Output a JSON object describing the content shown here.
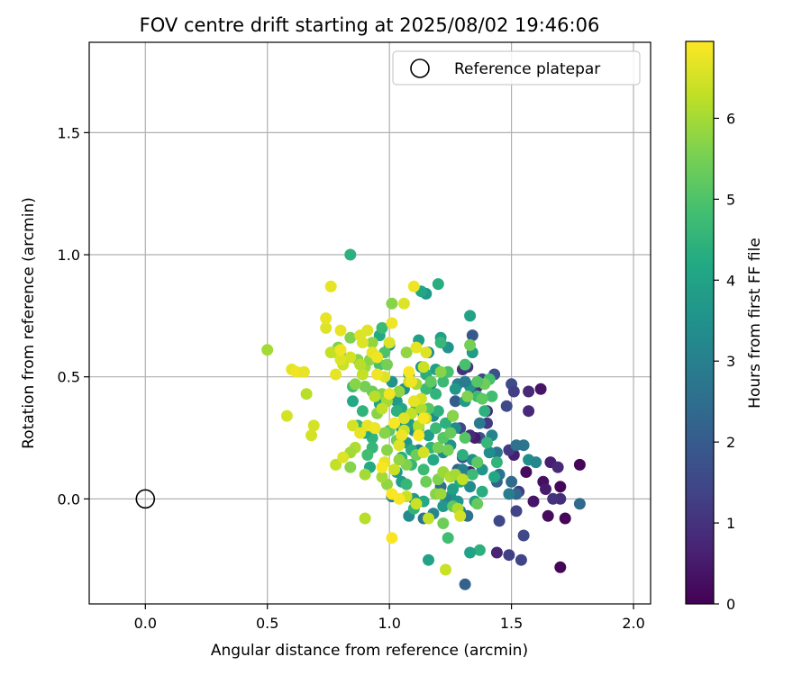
{
  "chart_data": {
    "type": "scatter",
    "title": "FOV centre drift starting at 2025/08/02 19:46:06",
    "xlabel": "Angular distance from reference (arcmin)",
    "ylabel": "Rotation from reference (arcmin)",
    "xlim": [
      -0.23,
      2.07
    ],
    "ylim": [
      -0.43,
      1.87
    ],
    "xticks": [
      0.0,
      0.5,
      1.0,
      1.5,
      2.0
    ],
    "xtick_labels": [
      "0.0",
      "0.5",
      "1.0",
      "1.5",
      "2.0"
    ],
    "yticks": [
      0.0,
      0.5,
      1.0,
      1.5
    ],
    "ytick_labels": [
      "0.0",
      "0.5",
      "1.0",
      "1.5"
    ],
    "grid": true,
    "legend": {
      "placement": "top-right",
      "entries": [
        "Reference platepar"
      ]
    },
    "reference_point": {
      "x": 0.0,
      "y": 0.0
    },
    "colorbar": {
      "label": "Hours from first FF file",
      "colormap": "viridis",
      "range": [
        0,
        6.95
      ],
      "ticks": [
        0,
        1,
        2,
        3,
        4,
        5,
        6
      ],
      "tick_labels": [
        "0",
        "1",
        "2",
        "3",
        "4",
        "5",
        "6"
      ]
    },
    "points": [
      [
        1.7,
        0.05,
        0.1
      ],
      [
        1.78,
        0.14,
        0.1
      ],
      [
        1.72,
        -0.08,
        0.1
      ],
      [
        1.7,
        -0.28,
        0.1
      ],
      [
        1.65,
        -0.07,
        0.2
      ],
      [
        1.62,
        0.45,
        0.4
      ],
      [
        1.56,
        0.11,
        0.2
      ],
      [
        1.59,
        -0.01,
        0.4
      ],
      [
        1.63,
        0.07,
        0.3
      ],
      [
        1.66,
        0.15,
        0.6
      ],
      [
        1.69,
        0.13,
        0.8
      ],
      [
        1.7,
        0.0,
        0.9
      ],
      [
        1.67,
        0.0,
        1.0
      ],
      [
        1.64,
        0.04,
        0.5
      ],
      [
        1.57,
        0.44,
        0.8
      ],
      [
        1.57,
        0.36,
        0.8
      ],
      [
        1.53,
        0.03,
        1.2
      ],
      [
        1.52,
        -0.05,
        1.4
      ],
      [
        1.55,
        -0.15,
        1.5
      ],
      [
        1.54,
        -0.25,
        1.4
      ],
      [
        1.49,
        -0.23,
        1.3
      ],
      [
        1.44,
        -0.22,
        0.7
      ],
      [
        1.45,
        -0.09,
        1.5
      ],
      [
        1.51,
        0.18,
        0.6
      ],
      [
        1.49,
        0.2,
        1.2
      ],
      [
        1.5,
        0.47,
        1.6
      ],
      [
        1.51,
        0.44,
        1.3
      ],
      [
        1.48,
        0.38,
        1.5
      ],
      [
        1.43,
        0.51,
        1.7
      ],
      [
        1.4,
        0.36,
        0.9
      ],
      [
        1.4,
        0.31,
        1.2
      ],
      [
        1.37,
        0.25,
        1.7
      ],
      [
        1.35,
        0.25,
        0.5
      ],
      [
        1.33,
        0.26,
        0.8
      ],
      [
        1.36,
        0.46,
        0.9
      ],
      [
        1.38,
        0.49,
        1.5
      ],
      [
        1.34,
        0.45,
        1.3
      ],
      [
        1.32,
        0.54,
        1.1
      ],
      [
        1.34,
        0.67,
        1.9
      ],
      [
        1.3,
        0.53,
        1.0
      ],
      [
        1.27,
        0.4,
        2.0
      ],
      [
        1.26,
        0.34,
        0.9
      ],
      [
        1.29,
        0.29,
        1.5
      ],
      [
        1.33,
        0.11,
        0.6
      ],
      [
        1.3,
        0.17,
        1.7
      ],
      [
        1.28,
        0.12,
        2.2
      ],
      [
        1.44,
        0.07,
        2.2
      ],
      [
        1.5,
        0.07,
        2.4
      ],
      [
        1.52,
        0.02,
        2.3
      ],
      [
        1.49,
        0.02,
        2.9
      ],
      [
        1.45,
        0.1,
        2.6
      ],
      [
        1.55,
        0.22,
        2.7
      ],
      [
        1.57,
        0.16,
        3.4
      ],
      [
        1.52,
        0.22,
        2.6
      ],
      [
        1.78,
        -0.02,
        2.4
      ],
      [
        1.6,
        0.15,
        3.2
      ],
      [
        1.44,
        0.19,
        2.7
      ],
      [
        1.42,
        0.26,
        3.1
      ],
      [
        1.37,
        0.31,
        2.8
      ],
      [
        1.41,
        0.19,
        3.4
      ],
      [
        1.38,
        0.12,
        3.6
      ],
      [
        1.34,
        0.16,
        3.4
      ],
      [
        1.3,
        0.12,
        3.0
      ],
      [
        1.33,
        0.05,
        3.3
      ],
      [
        1.32,
        -0.07,
        2.6
      ],
      [
        1.31,
        -0.35,
        2.2
      ],
      [
        1.29,
        -0.05,
        3.0
      ],
      [
        1.28,
        -0.01,
        3.6
      ],
      [
        1.25,
        0.01,
        3.5
      ],
      [
        1.23,
        0.0,
        3.1
      ],
      [
        1.21,
        0.05,
        2.5
      ],
      [
        1.26,
        0.04,
        3.9
      ],
      [
        1.22,
        0.19,
        3.3
      ],
      [
        1.25,
        0.22,
        3.5
      ],
      [
        1.27,
        0.29,
        3.3
      ],
      [
        1.28,
        0.47,
        3.0
      ],
      [
        1.27,
        0.45,
        3.7
      ],
      [
        1.31,
        0.4,
        3.8
      ],
      [
        1.33,
        0.46,
        3.6
      ],
      [
        1.31,
        0.48,
        2.9
      ],
      [
        1.34,
        0.6,
        3.8
      ],
      [
        1.33,
        0.75,
        4.0
      ],
      [
        1.24,
        0.62,
        3.6
      ],
      [
        1.21,
        0.66,
        3.9
      ],
      [
        1.19,
        0.53,
        3.9
      ],
      [
        1.16,
        0.6,
        3.3
      ],
      [
        1.13,
        0.54,
        3.6
      ],
      [
        1.12,
        0.65,
        3.9
      ],
      [
        1.15,
        0.84,
        3.7
      ],
      [
        1.17,
        0.47,
        3.2
      ],
      [
        1.14,
        0.34,
        3.7
      ],
      [
        1.18,
        0.34,
        3.3
      ],
      [
        1.16,
        0.26,
        3.8
      ],
      [
        1.12,
        0.2,
        3.0
      ],
      [
        1.1,
        0.28,
        3.3
      ],
      [
        1.07,
        0.23,
        3.6
      ],
      [
        1.08,
        0.31,
        3.8
      ],
      [
        1.05,
        0.29,
        3.6
      ],
      [
        1.03,
        0.4,
        3.7
      ],
      [
        1.06,
        0.45,
        3.4
      ],
      [
        1.01,
        0.48,
        3.6
      ],
      [
        1.0,
        0.63,
        3.7
      ],
      [
        0.96,
        0.67,
        4.2
      ],
      [
        1.03,
        0.11,
        3.7
      ],
      [
        1.08,
        -0.07,
        3.3
      ],
      [
        1.14,
        -0.08,
        2.6
      ],
      [
        1.18,
        -0.06,
        3.2
      ],
      [
        1.05,
        0.07,
        3.9
      ],
      [
        1.01,
        0.01,
        3.1
      ],
      [
        1.1,
        0.0,
        3.7
      ],
      [
        1.22,
        -0.03,
        3.7
      ],
      [
        1.35,
        -0.01,
        3.9
      ],
      [
        1.38,
        0.03,
        4.3
      ],
      [
        1.43,
        0.09,
        4.1
      ],
      [
        1.44,
        0.15,
        4.5
      ],
      [
        1.4,
        0.23,
        4.6
      ],
      [
        1.39,
        0.36,
        4.4
      ],
      [
        1.42,
        0.42,
        4.8
      ],
      [
        1.41,
        0.49,
        4.9
      ],
      [
        1.36,
        0.42,
        4.7
      ],
      [
        1.31,
        0.55,
        4.9
      ],
      [
        1.24,
        0.52,
        4.9
      ],
      [
        1.21,
        0.64,
        4.6
      ],
      [
        1.19,
        0.43,
        4.5
      ],
      [
        1.22,
        0.48,
        4.7
      ],
      [
        1.15,
        0.51,
        4.3
      ],
      [
        1.2,
        0.36,
        4.4
      ],
      [
        1.19,
        0.29,
        4.7
      ],
      [
        1.23,
        0.31,
        4.4
      ],
      [
        1.17,
        0.21,
        4.5
      ],
      [
        1.18,
        0.16,
        4.2
      ],
      [
        1.09,
        0.2,
        4.3
      ],
      [
        1.05,
        0.17,
        4.4
      ],
      [
        1.07,
        0.06,
        4.6
      ],
      [
        1.09,
        0.14,
        4.6
      ],
      [
        1.11,
        0.37,
        4.4
      ],
      [
        1.05,
        0.37,
        4.1
      ],
      [
        1.08,
        0.51,
        4.2
      ],
      [
        1.03,
        0.36,
        4.4
      ],
      [
        0.96,
        0.39,
        4.0
      ],
      [
        0.93,
        0.25,
        4.5
      ],
      [
        0.92,
        0.13,
        4.2
      ],
      [
        0.93,
        0.21,
        4.6
      ],
      [
        0.9,
        0.27,
        4.2
      ],
      [
        0.89,
        0.36,
        4.5
      ],
      [
        0.85,
        0.4,
        4.2
      ],
      [
        0.85,
        0.46,
        4.8
      ],
      [
        0.84,
        1.0,
        4.4
      ],
      [
        0.87,
        0.3,
        4.6
      ],
      [
        0.91,
        0.18,
        4.8
      ],
      [
        0.94,
        0.29,
        4.9
      ],
      [
        0.96,
        0.55,
        4.9
      ],
      [
        0.98,
        0.6,
        5.0
      ],
      [
        0.97,
        0.7,
        4.7
      ],
      [
        1.2,
        0.88,
        4.3
      ],
      [
        1.13,
        0.85,
        4.1
      ],
      [
        1.15,
        0.45,
        4.7
      ],
      [
        1.3,
        0.18,
        4.4
      ],
      [
        1.34,
        0.1,
        4.7
      ],
      [
        1.29,
        0.07,
        4.2
      ],
      [
        1.37,
        -0.21,
        4.4
      ],
      [
        1.33,
        -0.22,
        4.0
      ],
      [
        1.16,
        -0.25,
        4.0
      ],
      [
        1.14,
        -0.01,
        4.2
      ],
      [
        1.1,
        -0.04,
        4.5
      ],
      [
        1.14,
        0.12,
        4.7
      ],
      [
        1.38,
        0.41,
        5.2
      ],
      [
        1.39,
        0.47,
        5.4
      ],
      [
        1.36,
        0.48,
        5.1
      ],
      [
        1.32,
        0.42,
        5.6
      ],
      [
        1.33,
        0.63,
        5.5
      ],
      [
        1.21,
        0.52,
        5.7
      ],
      [
        1.17,
        0.48,
        5.2
      ],
      [
        1.16,
        0.37,
        5.1
      ],
      [
        1.2,
        0.21,
        5.5
      ],
      [
        1.24,
        0.2,
        5.5
      ],
      [
        1.22,
        0.25,
        5.1
      ],
      [
        1.2,
        0.08,
        5.6
      ],
      [
        1.15,
        0.07,
        5.4
      ],
      [
        1.19,
        0.02,
        5.7
      ],
      [
        1.22,
        -0.1,
        5.4
      ],
      [
        1.24,
        -0.16,
        4.8
      ],
      [
        1.26,
        -0.03,
        5.2
      ],
      [
        1.36,
        -0.02,
        5.3
      ],
      [
        1.36,
        0.15,
        5.2
      ],
      [
        1.31,
        0.25,
        5.1
      ],
      [
        1.25,
        0.27,
        5.3
      ],
      [
        1.26,
        0.34,
        5.7
      ],
      [
        1.12,
        0.29,
        5.4
      ],
      [
        1.11,
        0.18,
        5.4
      ],
      [
        1.07,
        0.14,
        5.6
      ],
      [
        1.03,
        0.24,
        5.4
      ],
      [
        1.0,
        0.28,
        5.2
      ],
      [
        0.99,
        0.2,
        5.7
      ],
      [
        0.98,
        0.27,
        5.7
      ],
      [
        0.95,
        0.35,
        5.7
      ],
      [
        0.97,
        0.43,
        5.7
      ],
      [
        0.93,
        0.44,
        5.4
      ],
      [
        0.9,
        0.46,
        5.5
      ],
      [
        0.9,
        0.54,
        5.9
      ],
      [
        0.87,
        0.57,
        5.7
      ],
      [
        0.84,
        0.66,
        5.6
      ],
      [
        0.79,
        0.62,
        5.6
      ],
      [
        0.8,
        0.59,
        5.3
      ],
      [
        0.86,
        0.47,
        5.7
      ],
      [
        0.92,
        0.57,
        5.7
      ],
      [
        0.93,
        0.64,
        5.8
      ],
      [
        0.99,
        0.55,
        5.5
      ],
      [
        1.01,
        0.8,
        5.7
      ],
      [
        1.07,
        0.6,
        5.8
      ],
      [
        1.04,
        0.44,
        5.8
      ],
      [
        1.04,
        0.16,
        5.8
      ],
      [
        0.99,
        0.06,
        5.8
      ],
      [
        0.97,
        0.09,
        6.0
      ],
      [
        0.9,
        0.1,
        6.0
      ],
      [
        0.86,
        0.21,
        6.1
      ],
      [
        0.84,
        0.19,
        6.0
      ],
      [
        0.84,
        0.13,
        5.7
      ],
      [
        0.9,
        -0.08,
        6.2
      ],
      [
        1.21,
        0.02,
        5.9
      ],
      [
        1.22,
        0.11,
        5.9
      ],
      [
        1.25,
        0.09,
        6.1
      ],
      [
        1.27,
        0.1,
        6.0
      ],
      [
        1.3,
        0.08,
        6.3
      ],
      [
        1.28,
        -0.04,
        6.1
      ],
      [
        1.29,
        -0.07,
        6.5
      ],
      [
        1.23,
        -0.29,
        6.4
      ],
      [
        1.16,
        -0.08,
        6.3
      ],
      [
        1.11,
        -0.02,
        6.4
      ],
      [
        1.07,
        0.01,
        6.4
      ],
      [
        1.02,
        0.12,
        6.4
      ],
      [
        1.06,
        0.28,
        6.4
      ],
      [
        1.09,
        0.35,
        6.3
      ],
      [
        1.08,
        0.48,
        6.3
      ],
      [
        1.14,
        0.54,
        6.4
      ],
      [
        1.15,
        0.6,
        6.6
      ],
      [
        1.12,
        0.3,
        6.2
      ],
      [
        1.11,
        0.47,
        6.0
      ],
      [
        1.15,
        0.33,
        6.3
      ],
      [
        1.13,
        0.37,
        6.1
      ],
      [
        0.99,
        0.4,
        6.0
      ],
      [
        0.97,
        0.37,
        6.3
      ],
      [
        0.94,
        0.42,
        6.2
      ],
      [
        0.89,
        0.51,
        6.3
      ],
      [
        0.88,
        0.55,
        6.2
      ],
      [
        0.84,
        0.58,
        6.5
      ],
      [
        0.81,
        0.55,
        6.4
      ],
      [
        0.78,
        0.6,
        6.4
      ],
      [
        0.76,
        0.6,
        6.3
      ],
      [
        0.8,
        0.57,
        6.6
      ],
      [
        0.78,
        0.51,
        6.7
      ],
      [
        0.74,
        0.7,
        6.6
      ],
      [
        0.74,
        0.74,
        6.7
      ],
      [
        0.76,
        0.87,
        6.7
      ],
      [
        0.66,
        0.43,
        6.2
      ],
      [
        0.58,
        0.34,
        6.5
      ],
      [
        0.5,
        0.61,
        6.0
      ],
      [
        0.6,
        0.53,
        6.7
      ],
      [
        0.62,
        0.52,
        6.8
      ],
      [
        0.65,
        0.52,
        6.7
      ],
      [
        0.69,
        0.3,
        6.5
      ],
      [
        0.68,
        0.26,
        6.5
      ],
      [
        0.78,
        0.14,
        6.3
      ],
      [
        0.81,
        0.17,
        6.6
      ],
      [
        0.85,
        0.3,
        6.5
      ],
      [
        0.88,
        0.27,
        6.7
      ],
      [
        0.91,
        0.3,
        6.7
      ],
      [
        0.94,
        0.29,
        6.8
      ],
      [
        0.98,
        0.15,
        6.7
      ],
      [
        1.05,
        0.26,
        6.8
      ],
      [
        1.0,
        0.43,
        6.8
      ],
      [
        0.98,
        0.5,
        6.6
      ],
      [
        0.95,
        0.51,
        6.8
      ],
      [
        0.93,
        0.6,
        6.7
      ],
      [
        0.89,
        0.64,
        6.6
      ],
      [
        0.91,
        0.69,
        6.6
      ],
      [
        0.8,
        0.69,
        6.7
      ],
      [
        0.8,
        0.61,
        6.8
      ],
      [
        0.88,
        0.67,
        6.6
      ],
      [
        0.95,
        0.58,
        6.8
      ],
      [
        1.0,
        0.64,
        6.6
      ],
      [
        1.01,
        0.72,
        6.8
      ],
      [
        1.06,
        0.8,
        6.6
      ],
      [
        1.1,
        0.87,
        6.8
      ],
      [
        1.11,
        0.62,
        6.7
      ],
      [
        1.09,
        0.48,
        6.8
      ],
      [
        1.13,
        0.41,
        6.5
      ],
      [
        1.14,
        0.33,
        6.9
      ],
      [
        1.12,
        0.26,
        6.9
      ],
      [
        1.06,
        0.33,
        6.6
      ],
      [
        1.04,
        0.22,
        6.6
      ],
      [
        1.02,
        0.31,
        6.9
      ],
      [
        1.01,
        0.02,
        6.9
      ],
      [
        1.04,
        0.0,
        6.9
      ],
      [
        1.01,
        -0.16,
        6.9
      ],
      [
        0.97,
        0.13,
        6.9
      ],
      [
        1.1,
        0.4,
        6.7
      ],
      [
        1.08,
        0.52,
        6.9
      ],
      [
        1.14,
        0.19,
        6.5
      ]
    ]
  }
}
